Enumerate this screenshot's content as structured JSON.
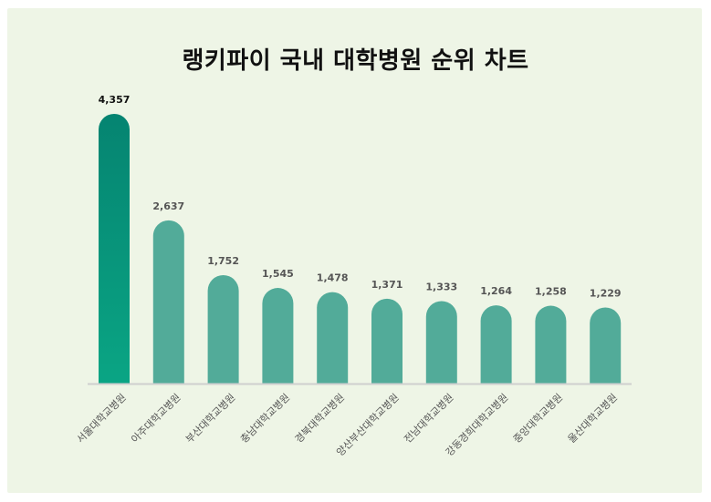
{
  "chart_data": {
    "type": "bar",
    "title": "랭키파이 국내 대학병원 순위 차트",
    "categories": [
      "서울대학교병원",
      "아주대학교병원",
      "부산대학교병원",
      "충남대학교병원",
      "경북대학교병원",
      "양산부산대학교병원",
      "전남대학교병원",
      "강동경희대학교병원",
      "중앙대학교병원",
      "울산대학교병원"
    ],
    "values": [
      4357,
      2637,
      1752,
      1545,
      1478,
      1371,
      1333,
      1264,
      1258,
      1229
    ],
    "value_labels": [
      "4,357",
      "2,637",
      "1,752",
      "1,545",
      "1,478",
      "1,371",
      "1,333",
      "1,264",
      "1,258",
      "1,229"
    ],
    "xlabel": "",
    "ylabel": "",
    "grid": false,
    "colors": {
      "top_bar_dark": "#058471",
      "top_bar_light": "#0aa584",
      "bar": "#52ab99",
      "axis": "#cfcfcf",
      "top_label": "#111111",
      "label": "#555555"
    }
  }
}
